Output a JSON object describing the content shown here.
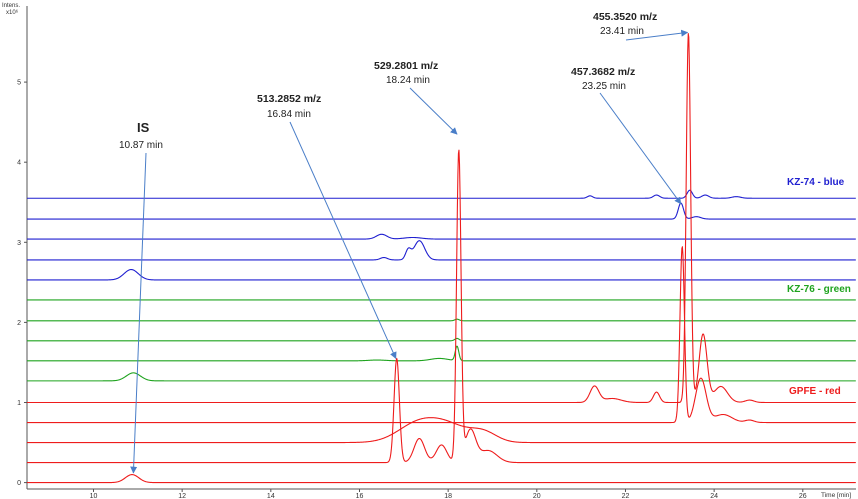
{
  "chart_data": {
    "type": "line",
    "ylabel": "Intens.",
    "ylabel_exp": "x10⁶",
    "xlabel": "Time [min]",
    "xlim": [
      8.5,
      27.2
    ],
    "ylim": [
      -0.08,
      5.95
    ],
    "x_ticks": [
      10,
      12,
      14,
      16,
      18,
      20,
      22,
      24,
      26
    ],
    "y_ticks": [
      0,
      1,
      2,
      3,
      4,
      5
    ],
    "colors": {
      "blue": "#1f1fd0",
      "green": "#1fa31f",
      "red": "#ee1c1c",
      "arrow": "#4a7ec8",
      "axis": "#555555"
    },
    "groups": [
      {
        "name": "KZ-74 - blue",
        "color": "#1f1fd0",
        "traces": [
          {
            "baseline": 3.55,
            "peaks": [
              [
                21.2,
                0.03,
                0.06
              ],
              [
                22.7,
                0.04,
                0.07
              ],
              [
                23.45,
                0.1,
                0.06
              ],
              [
                23.8,
                0.04,
                0.08
              ],
              [
                24.5,
                0.02,
                0.1
              ]
            ]
          },
          {
            "baseline": 3.29,
            "peaks": [
              [
                23.25,
                0.2,
                0.06
              ],
              [
                23.6,
                0.03,
                0.1
              ]
            ]
          },
          {
            "baseline": 3.04,
            "peaks": [
              [
                16.5,
                0.06,
                0.12
              ],
              [
                17.2,
                0.02,
                0.2
              ]
            ]
          },
          {
            "baseline": 2.78,
            "peaks": [
              [
                16.55,
                0.03,
                0.08
              ],
              [
                17.35,
                0.24,
                0.12
              ],
              [
                17.1,
                0.12,
                0.06
              ]
            ]
          },
          {
            "baseline": 2.53,
            "peaks": [
              [
                10.85,
                0.13,
                0.16
              ]
            ]
          }
        ]
      },
      {
        "name": "KZ-76 - green",
        "color": "#1fa31f",
        "traces": [
          {
            "baseline": 2.28,
            "peaks": []
          },
          {
            "baseline": 2.02,
            "peaks": [
              [
                18.2,
                0.02,
                0.05
              ]
            ]
          },
          {
            "baseline": 1.77,
            "peaks": [
              [
                18.2,
                0.03,
                0.05
              ]
            ]
          },
          {
            "baseline": 1.52,
            "peaks": [
              [
                16.4,
                0.01,
                0.2
              ],
              [
                17.8,
                0.03,
                0.2
              ],
              [
                18.2,
                0.18,
                0.04
              ]
            ]
          },
          {
            "baseline": 1.27,
            "peaks": [
              [
                10.9,
                0.1,
                0.16
              ]
            ]
          }
        ]
      },
      {
        "name": "GPFE - red",
        "color": "#ee1c1c",
        "traces": [
          {
            "baseline": 1.0,
            "peaks": [
              [
                21.3,
                0.2,
                0.1
              ],
              [
                21.7,
                0.05,
                0.2
              ],
              [
                22.7,
                0.13,
                0.07
              ],
              [
                23.42,
                4.62,
                0.05
              ],
              [
                23.75,
                0.85,
                0.09
              ],
              [
                24.15,
                0.2,
                0.15
              ],
              [
                24.8,
                0.03,
                0.1
              ]
            ]
          },
          {
            "baseline": 0.75,
            "peaks": [
              [
                23.28,
                2.2,
                0.05
              ],
              [
                23.7,
                0.55,
                0.12
              ],
              [
                24.2,
                0.1,
                0.2
              ],
              [
                24.8,
                0.03,
                0.1
              ]
            ]
          },
          {
            "baseline": 0.5,
            "peaks": [
              [
                17.3,
                0.22,
                0.45
              ],
              [
                18.0,
                0.2,
                0.45
              ],
              [
                18.8,
                0.12,
                0.3
              ]
            ]
          },
          {
            "baseline": 0.25,
            "peaks": [
              [
                16.84,
                1.3,
                0.06
              ],
              [
                17.35,
                0.3,
                0.12
              ],
              [
                17.85,
                0.22,
                0.12
              ],
              [
                18.24,
                3.87,
                0.05
              ],
              [
                18.5,
                0.4,
                0.12
              ],
              [
                18.9,
                0.15,
                0.2
              ]
            ]
          },
          {
            "baseline": 0.0,
            "peaks": [
              [
                10.87,
                0.1,
                0.15
              ]
            ]
          }
        ]
      }
    ],
    "annotations": [
      {
        "label": "IS",
        "time": "10.87 min",
        "target": [
          10.9,
          0.12
        ]
      },
      {
        "label": "513.2852 m/z",
        "time": "16.84 min",
        "target": [
          16.82,
          1.55
        ]
      },
      {
        "label": "529.2801 m/z",
        "time": "18.24 min",
        "target": [
          18.2,
          4.35
        ]
      },
      {
        "label": "457.3682 m/z",
        "time": "23.25 min",
        "target": [
          23.25,
          3.48
        ]
      },
      {
        "label": "455.3520 m/z",
        "time": "23.41 min",
        "target": [
          23.4,
          5.62
        ]
      }
    ]
  }
}
